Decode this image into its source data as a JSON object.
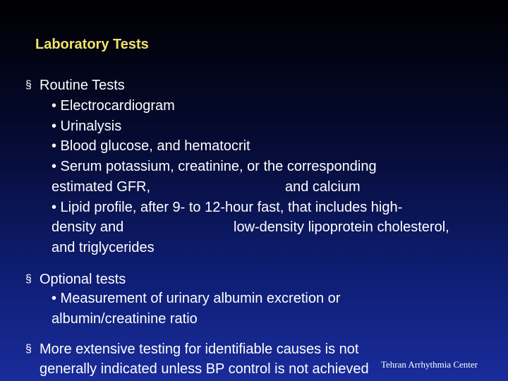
{
  "title": "Laboratory Tests",
  "marker": "§",
  "sections": [
    {
      "heading": "Routine Tests",
      "lines": [
        [
          "• Electrocardiogram"
        ],
        [
          "• Urinalysis"
        ],
        [
          "• Blood glucose, and hematocrit"
        ],
        [
          "• Serum potassium, creatinine, or the corresponding"
        ],
        [
          "estimated GFR,",
          "and calcium"
        ],
        [
          "• Lipid profile, after 9- to 12-hour fast, that includes high-"
        ],
        [
          "density and",
          "low-density lipoprotein cholesterol,"
        ],
        [
          "and triglycerides"
        ]
      ]
    },
    {
      "heading": "Optional tests",
      "lines": [
        [
          "• Measurement of urinary albumin excretion or"
        ],
        [
          "albumin/creatinine ratio"
        ]
      ]
    },
    {
      "heading": "More extensive testing for identifiable causes is not",
      "lines": [
        [
          "generally indicated unless BP control is not achieved"
        ]
      ]
    }
  ],
  "footer": "Tehran Arrhythmia Center"
}
